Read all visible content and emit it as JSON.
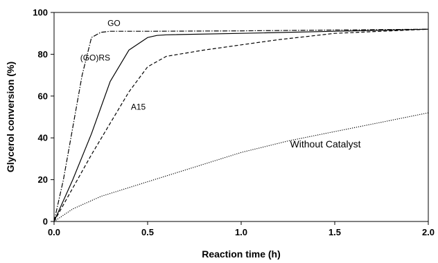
{
  "chart_data": {
    "type": "line",
    "xlabel": "Reaction time (h)",
    "ylabel": "Glycerol conversion (%)",
    "xlim": [
      0,
      2
    ],
    "ylim": [
      0,
      100
    ],
    "xticks": [
      "0.0",
      "0.5",
      "1.0",
      "1.5",
      "2.0"
    ],
    "yticks": [
      "0",
      "20",
      "40",
      "60",
      "80",
      "100"
    ],
    "grid": false,
    "legend": "none",
    "series": [
      {
        "name": "GO",
        "style": "dash-dot",
        "color": "#000000",
        "x": [
          0,
          0.05,
          0.1,
          0.15,
          0.2,
          0.25,
          0.3,
          0.35,
          0.5,
          1.0,
          1.5,
          2.0
        ],
        "y": [
          0,
          20,
          45,
          70,
          88,
          90.5,
          91,
          91,
          91,
          91.2,
          91.6,
          92
        ]
      },
      {
        "name": "(GO)RS",
        "style": "solid",
        "color": "#000000",
        "x": [
          0,
          0.1,
          0.2,
          0.3,
          0.4,
          0.5,
          0.55,
          0.6,
          1.0,
          1.5,
          2.0
        ],
        "y": [
          0,
          20,
          42,
          67,
          82,
          88,
          89,
          89.3,
          90,
          91,
          92
        ]
      },
      {
        "name": "A15",
        "style": "dashed",
        "color": "#000000",
        "x": [
          0,
          0.1,
          0.2,
          0.3,
          0.4,
          0.5,
          0.6,
          0.8,
          1.0,
          1.2,
          1.5,
          2.0
        ],
        "y": [
          0,
          16,
          32,
          47,
          62,
          74,
          79,
          82,
          84.5,
          87,
          90,
          92
        ]
      },
      {
        "name": "Without Catalyst",
        "style": "dotted",
        "color": "#000000",
        "x": [
          0,
          0.1,
          0.25,
          0.5,
          0.75,
          1.0,
          1.25,
          1.5,
          1.75,
          2.0
        ],
        "y": [
          0,
          6,
          12,
          19,
          26,
          33,
          38.5,
          43,
          47.5,
          52
        ]
      }
    ],
    "annotations": [
      {
        "text": "GO",
        "x": 0.32,
        "y": 93.5
      },
      {
        "text": "(GO)RS",
        "x": 0.22,
        "y": 77
      },
      {
        "text": "A15",
        "x": 0.45,
        "y": 53.5
      },
      {
        "text": "Without Catalyst",
        "x": 1.45,
        "y": 35.5
      }
    ]
  }
}
